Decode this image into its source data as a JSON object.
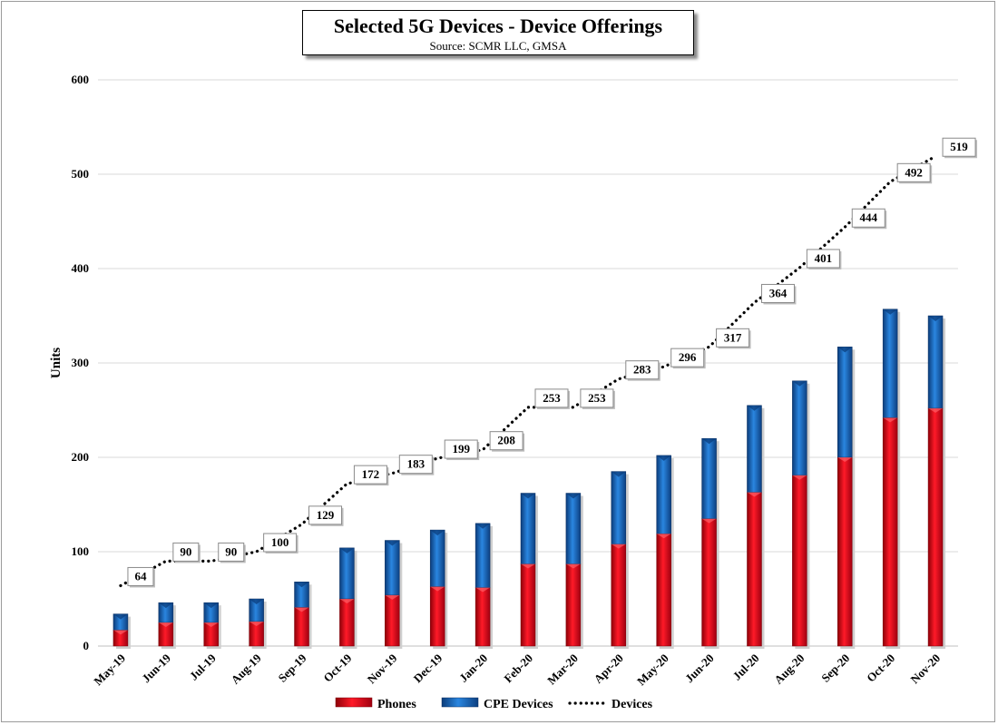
{
  "chart_data": {
    "type": "bar",
    "title": "Selected 5G Devices - Device Offerings",
    "subtitle": "Source: SCMR LLC, GMSA",
    "xlabel": "",
    "ylabel": "Units",
    "ylim": [
      0,
      600
    ],
    "yticks": [
      0,
      100,
      200,
      300,
      400,
      500,
      600
    ],
    "categories": [
      "May-19",
      "Jun-19",
      "Jul-19",
      "Aug-19",
      "Sep-19",
      "Oct-19",
      "Nov-19",
      "Dec-19",
      "Jan-20",
      "Feb-20",
      "Mar-20",
      "Apr-20",
      "May-20",
      "Jun-20",
      "Jul-20",
      "Aug-20",
      "Sep-20",
      "Oct-20",
      "Nov-20"
    ],
    "series": [
      {
        "name": "Phones",
        "kind": "stacked-bar",
        "color": "#e8101e",
        "values": [
          17,
          25,
          25,
          26,
          41,
          50,
          54,
          63,
          62,
          87,
          87,
          108,
          119,
          135,
          163,
          181,
          200,
          242,
          252
        ]
      },
      {
        "name": "CPE Devices",
        "kind": "stacked-bar",
        "color": "#1565c0",
        "values": [
          17,
          21,
          21,
          24,
          27,
          54,
          58,
          60,
          68,
          75,
          75,
          77,
          83,
          85,
          92,
          100,
          117,
          115,
          98
        ]
      },
      {
        "name": "Devices",
        "kind": "dotted-line",
        "color": "#000000",
        "values": [
          64,
          90,
          90,
          100,
          129,
          172,
          183,
          199,
          208,
          253,
          253,
          283,
          296,
          317,
          364,
          401,
          444,
          492,
          519
        ]
      }
    ],
    "legend": [
      "Phones",
      "CPE Devices",
      "Devices"
    ],
    "legend_position": "bottom",
    "grid": true
  }
}
